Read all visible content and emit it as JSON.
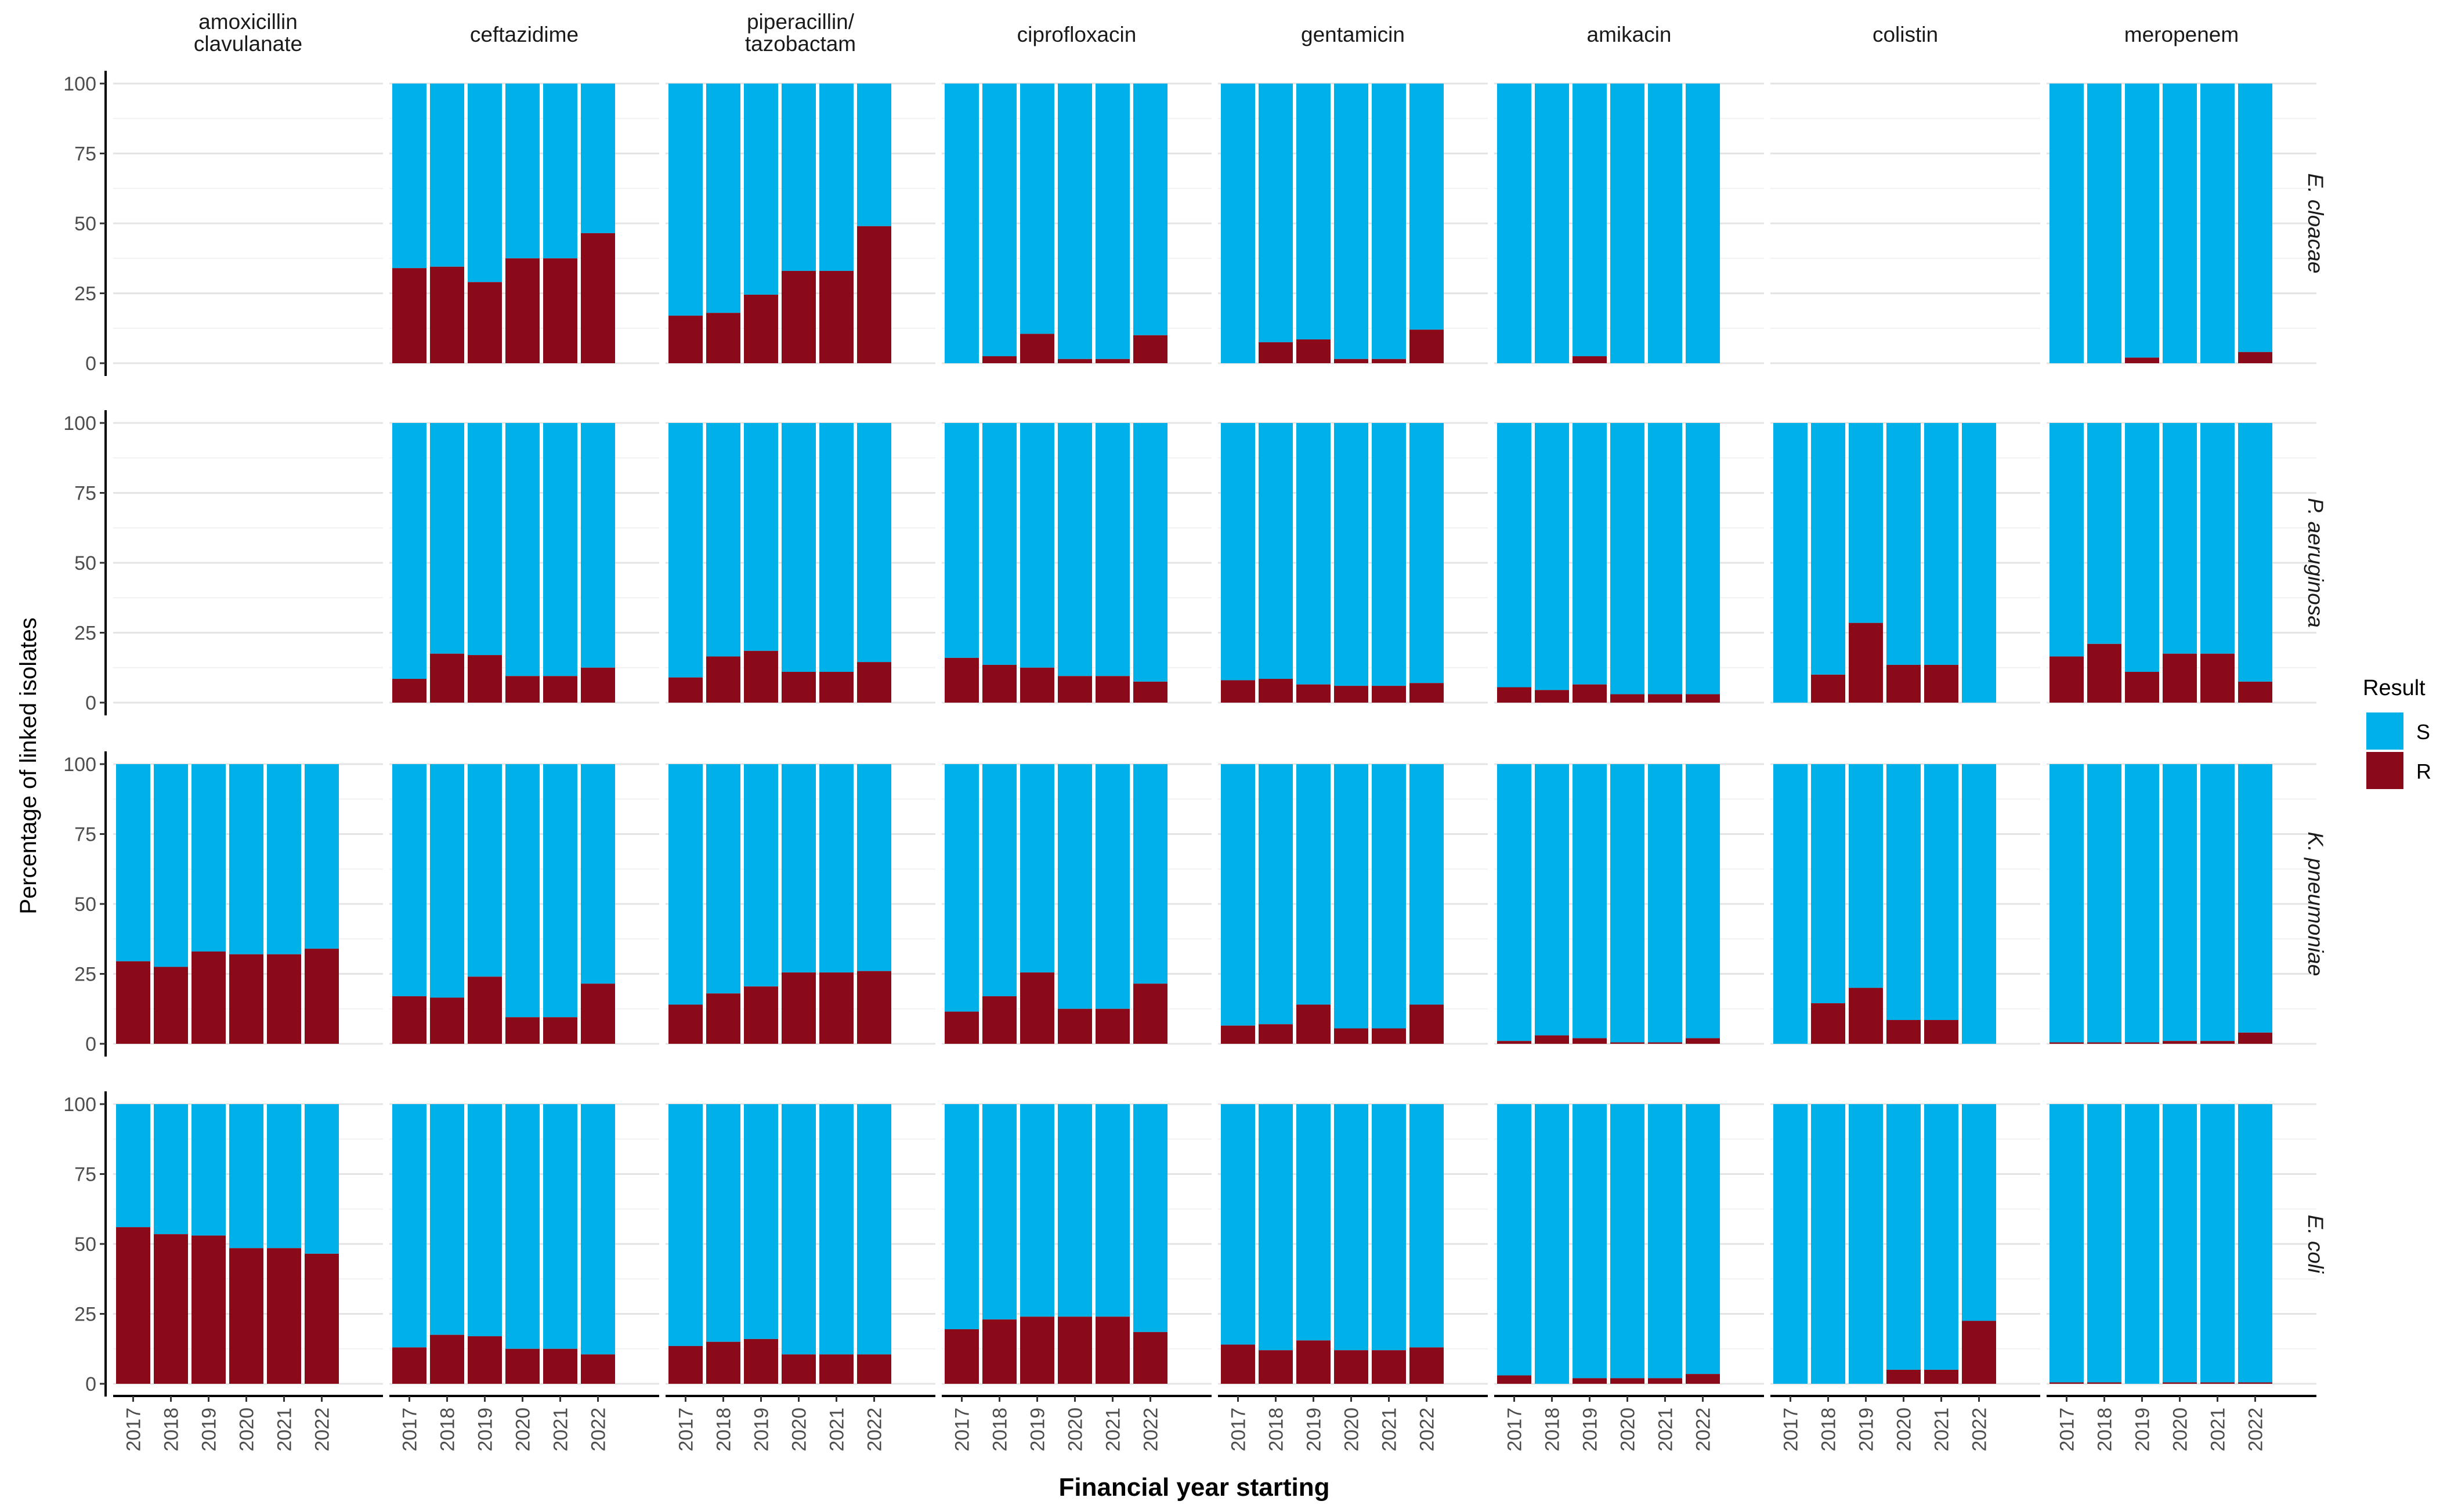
{
  "chart_data": {
    "type": "bar",
    "stacked": true,
    "xlabel": "Financial year starting",
    "ylabel": "Percentage of linked isolates",
    "ylim": [
      0,
      100
    ],
    "y_ticks": [
      "0",
      "25",
      "50",
      "75",
      "100"
    ],
    "years": [
      "2017",
      "2018",
      "2019",
      "2020",
      "2021",
      "2022"
    ],
    "antibiotics": [
      "amoxicillin\nclavulanate",
      "ceftazidime",
      "piperacillin/\ntazobactam",
      "ciprofloxacin",
      "gentamicin",
      "amikacin",
      "colistin",
      "meropenem"
    ],
    "organisms": [
      "E. cloacae",
      "P. aeruginosa",
      "K. pneumoniae",
      "E. coli"
    ],
    "legend": {
      "title": "Result",
      "entries": [
        {
          "label": "S",
          "color": "#00B0E8"
        },
        {
          "label": "R",
          "color": "#8B0A1A"
        }
      ]
    },
    "grid": true,
    "resistant_percent": {
      "E. cloacae": [
        null,
        [
          34,
          34.5,
          29,
          37.5,
          37.5,
          46.5
        ],
        [
          17,
          18,
          24.5,
          33,
          33,
          49
        ],
        [
          0,
          2.5,
          10.5,
          1.5,
          1.5,
          10
        ],
        [
          0,
          7.5,
          8.5,
          1.5,
          1.5,
          12
        ],
        [
          0,
          0,
          2.5,
          0,
          0,
          0
        ],
        null,
        [
          0,
          0,
          2,
          0,
          0,
          4
        ]
      ],
      "P. aeruginosa": [
        null,
        [
          8.5,
          17.5,
          17,
          9.5,
          9.5,
          12.5
        ],
        [
          9,
          16.5,
          18.5,
          11,
          11,
          14.5
        ],
        [
          16,
          13.5,
          12.5,
          9.5,
          9.5,
          7.5
        ],
        [
          8,
          8.5,
          6.5,
          6,
          6,
          7
        ],
        [
          5.5,
          4.5,
          6.5,
          3,
          3,
          3
        ],
        [
          0,
          10,
          28.5,
          13.5,
          13.5,
          0
        ],
        [
          16.5,
          21,
          11,
          17.5,
          17.5,
          7.5
        ]
      ],
      "K. pneumoniae": [
        [
          29.5,
          27.5,
          33,
          32,
          32,
          34
        ],
        [
          17,
          16.5,
          24,
          9.5,
          9.5,
          21.5
        ],
        [
          14,
          18,
          20.5,
          25.5,
          25.5,
          26
        ],
        [
          11.5,
          17,
          25.5,
          12.5,
          12.5,
          21.5
        ],
        [
          6.5,
          7,
          14,
          5.5,
          5.5,
          14
        ],
        [
          1,
          3,
          2,
          0.5,
          0.5,
          2
        ],
        [
          0,
          14.5,
          20,
          8.5,
          8.5,
          0
        ],
        [
          0.5,
          0.5,
          0.5,
          1,
          1,
          4
        ]
      ],
      "E. coli": [
        [
          56,
          53.5,
          53,
          48.5,
          48.5,
          46.5
        ],
        [
          13,
          17.5,
          17,
          12.5,
          12.5,
          10.5
        ],
        [
          13.5,
          15,
          16,
          10.5,
          10.5,
          10.5
        ],
        [
          19.5,
          23,
          24,
          24,
          24,
          18.5
        ],
        [
          14,
          12,
          15.5,
          12,
          12,
          13
        ],
        [
          3,
          0,
          2,
          2,
          2,
          3.5
        ],
        [
          0,
          0,
          0,
          5,
          5,
          22.5
        ],
        [
          0.5,
          0.5,
          0,
          0.5,
          0.5,
          0.5
        ]
      ]
    }
  }
}
